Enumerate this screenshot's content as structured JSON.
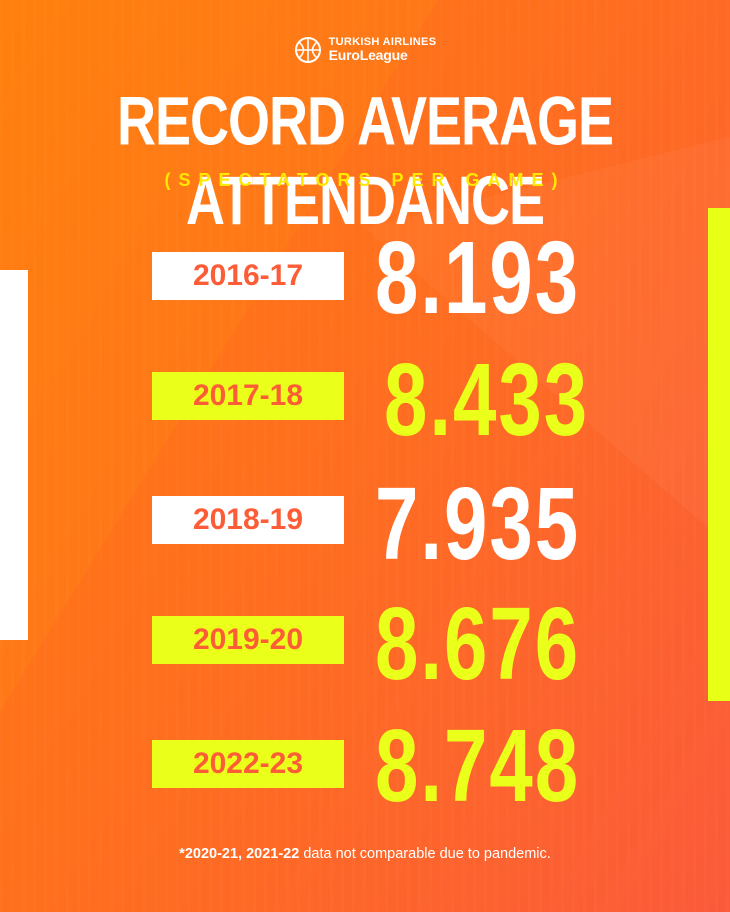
{
  "logo": {
    "line1": "TURKISH AIRLINES",
    "line2": "EuroLeague",
    "icon": "basketball-icon"
  },
  "title": "RECORD AVERAGE ATTENDANCE",
  "subtitle": "(SPECTATORS PER GAME)",
  "colors": {
    "background": "#ff6f1e",
    "accent_yellow": "#eaff19",
    "white": "#ffffff",
    "label_text": "#fd5d36"
  },
  "rows": [
    {
      "season": "2016-17",
      "value": "8.193"
    },
    {
      "season": "2017-18",
      "value": "8.433"
    },
    {
      "season": "2018-19",
      "value": "7.935"
    },
    {
      "season": "2019-20",
      "value": "8.676"
    },
    {
      "season": "2022-23",
      "value": "8.748"
    }
  ],
  "footnote": {
    "bold": "*2020-21, 2021-22",
    "rest": " data not comparable due to pandemic."
  }
}
